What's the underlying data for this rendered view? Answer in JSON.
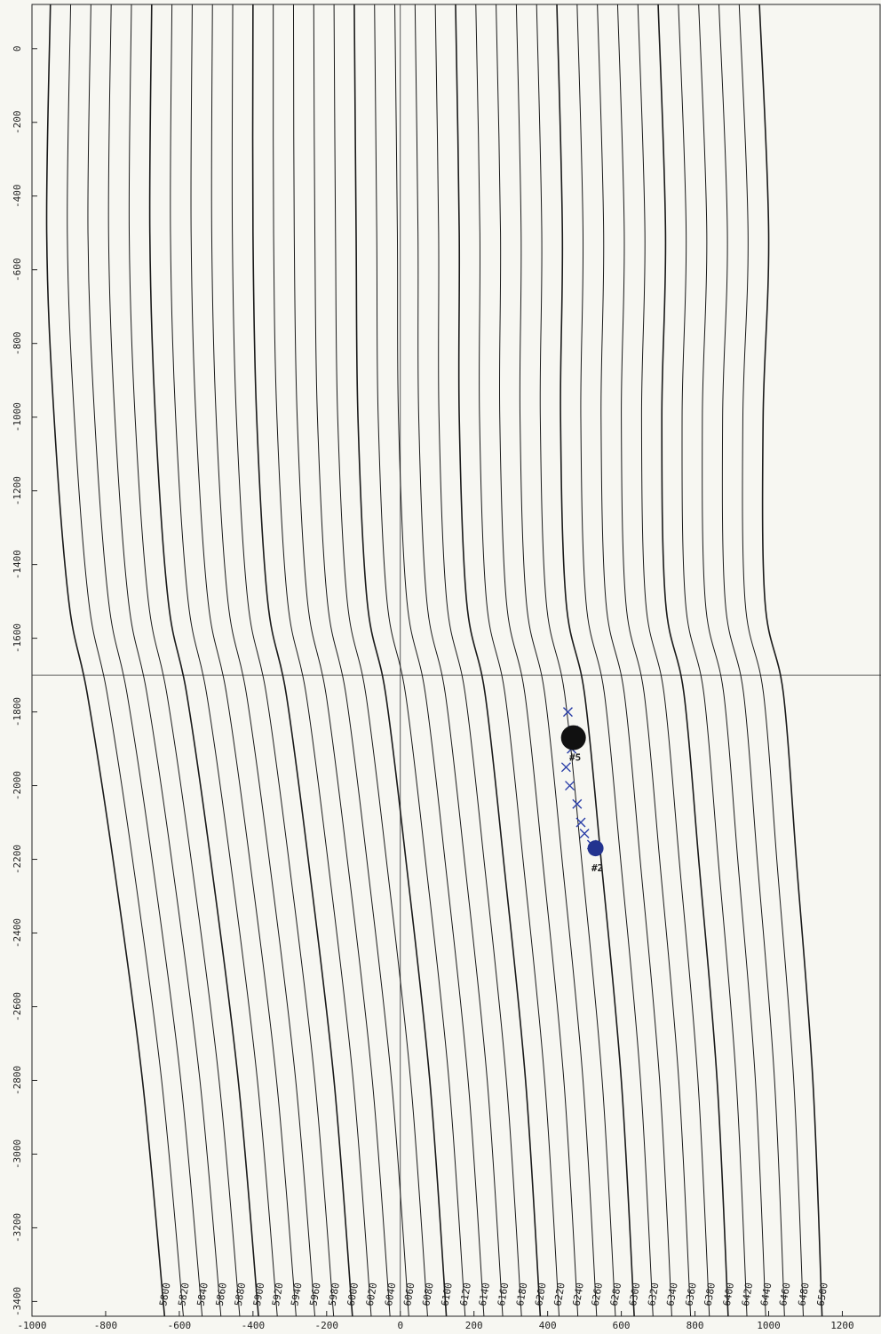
{
  "chart_data": {
    "type": "contour",
    "xlim": [
      -1000,
      1305
    ],
    "ylim": [
      -3440,
      120
    ],
    "xticks": [
      -1000,
      -800,
      -600,
      -400,
      -200,
      0,
      200,
      400,
      600,
      800,
      1000,
      1200
    ],
    "yticks": [
      0,
      -200,
      -400,
      -600,
      -800,
      -1000,
      -1200,
      -1400,
      -1600,
      -1800,
      -2000,
      -2200,
      -2400,
      -2600,
      -2800,
      -3000,
      -3200,
      -3400
    ],
    "y_samples": [
      120,
      -500,
      -1000,
      -1500,
      -1750,
      -2200,
      -2800,
      -3440
    ],
    "contours": [
      {
        "level": 5800,
        "x": [
          -950,
          -960,
          -940,
          -900,
          -850,
          -780,
          -700,
          -640
        ]
      },
      {
        "level": 5820,
        "x": [
          -895,
          -904,
          -885,
          -846,
          -796,
          -727,
          -648,
          -589
        ]
      },
      {
        "level": 5840,
        "x": [
          -840,
          -848,
          -830,
          -792,
          -742,
          -674,
          -596,
          -538
        ]
      },
      {
        "level": 5860,
        "x": [
          -785,
          -792,
          -775,
          -738,
          -688,
          -621,
          -544,
          -487
        ]
      },
      {
        "level": 5880,
        "x": [
          -730,
          -736,
          -720,
          -684,
          -634,
          -568,
          -492,
          -436
        ]
      },
      {
        "level": 5900,
        "x": [
          -675,
          -680,
          -665,
          -630,
          -580,
          -515,
          -440,
          -385
        ]
      },
      {
        "level": 5920,
        "x": [
          -620,
          -624,
          -610,
          -576,
          -526,
          -462,
          -388,
          -334
        ]
      },
      {
        "level": 5940,
        "x": [
          -565,
          -568,
          -555,
          -522,
          -472,
          -409,
          -336,
          -283
        ]
      },
      {
        "level": 5960,
        "x": [
          -510,
          -512,
          -500,
          -468,
          -418,
          -356,
          -284,
          -232
        ]
      },
      {
        "level": 5980,
        "x": [
          -455,
          -456,
          -445,
          -414,
          -364,
          -303,
          -232,
          -181
        ]
      },
      {
        "level": 6000,
        "x": [
          -400,
          -400,
          -390,
          -360,
          -310,
          -250,
          -180,
          -130
        ]
      },
      {
        "level": 6020,
        "x": [
          -345,
          -344,
          -335,
          -306,
          -256,
          -197,
          -128,
          -79
        ]
      },
      {
        "level": 6040,
        "x": [
          -290,
          -288,
          -280,
          -252,
          -202,
          -144,
          -76,
          -28
        ]
      },
      {
        "level": 6060,
        "x": [
          -235,
          -232,
          -225,
          -198,
          -148,
          -91,
          -24,
          23
        ]
      },
      {
        "level": 6080,
        "x": [
          -180,
          -176,
          -170,
          -144,
          -94,
          -38,
          28,
          74
        ]
      },
      {
        "level": 6100,
        "x": [
          -125,
          -120,
          -115,
          -90,
          -40,
          15,
          80,
          125
        ]
      },
      {
        "level": 6120,
        "x": [
          -70,
          -64,
          -60,
          -36,
          14,
          68,
          132,
          176
        ]
      },
      {
        "level": 6140,
        "x": [
          -15,
          -8,
          -5,
          18,
          68,
          121,
          184,
          227
        ]
      },
      {
        "level": 6160,
        "x": [
          40,
          48,
          50,
          72,
          122,
          174,
          236,
          278
        ]
      },
      {
        "level": 6180,
        "x": [
          95,
          104,
          105,
          126,
          176,
          227,
          288,
          329
        ]
      },
      {
        "level": 6200,
        "x": [
          150,
          160,
          160,
          180,
          230,
          280,
          340,
          380
        ]
      },
      {
        "level": 6220,
        "x": [
          205,
          216,
          215,
          234,
          284,
          333,
          392,
          431
        ]
      },
      {
        "level": 6240,
        "x": [
          260,
          272,
          270,
          288,
          338,
          386,
          444,
          482
        ]
      },
      {
        "level": 6260,
        "x": [
          315,
          328,
          325,
          342,
          392,
          439,
          496,
          533
        ]
      },
      {
        "level": 6280,
        "x": [
          370,
          384,
          380,
          396,
          446,
          492,
          548,
          584
        ]
      },
      {
        "level": 6300,
        "x": [
          425,
          440,
          435,
          450,
          500,
          545,
          600,
          635
        ]
      },
      {
        "level": 6320,
        "x": [
          480,
          496,
          490,
          504,
          554,
          598,
          652,
          686
        ]
      },
      {
        "level": 6340,
        "x": [
          535,
          552,
          545,
          558,
          608,
          651,
          704,
          737
        ]
      },
      {
        "level": 6360,
        "x": [
          590,
          608,
          600,
          612,
          662,
          704,
          756,
          788
        ]
      },
      {
        "level": 6380,
        "x": [
          645,
          664,
          655,
          666,
          716,
          757,
          808,
          839
        ]
      },
      {
        "level": 6400,
        "x": [
          700,
          720,
          710,
          720,
          770,
          810,
          860,
          890
        ]
      },
      {
        "level": 6420,
        "x": [
          755,
          776,
          765,
          774,
          824,
          863,
          912,
          941
        ]
      },
      {
        "level": 6440,
        "x": [
          810,
          832,
          820,
          828,
          878,
          916,
          964,
          992
        ]
      },
      {
        "level": 6460,
        "x": [
          865,
          888,
          875,
          882,
          932,
          969,
          1016,
          1043
        ]
      },
      {
        "level": 6480,
        "x": [
          920,
          944,
          930,
          936,
          986,
          1022,
          1068,
          1094
        ]
      },
      {
        "level": 6500,
        "x": [
          975,
          1000,
          985,
          990,
          1040,
          1075,
          1120,
          1145
        ]
      }
    ],
    "track": {
      "x": [
        455,
        470,
        465,
        450,
        460,
        480,
        490,
        500,
        520,
        530
      ],
      "y": [
        -1800,
        -1850,
        -1900,
        -1950,
        -2000,
        -2050,
        -2100,
        -2130,
        -2160,
        -2170
      ]
    },
    "wells": [
      {
        "label": "#5",
        "x": 470,
        "y": -1870
      },
      {
        "label": "#2",
        "x": 530,
        "y": -2170
      }
    ]
  }
}
